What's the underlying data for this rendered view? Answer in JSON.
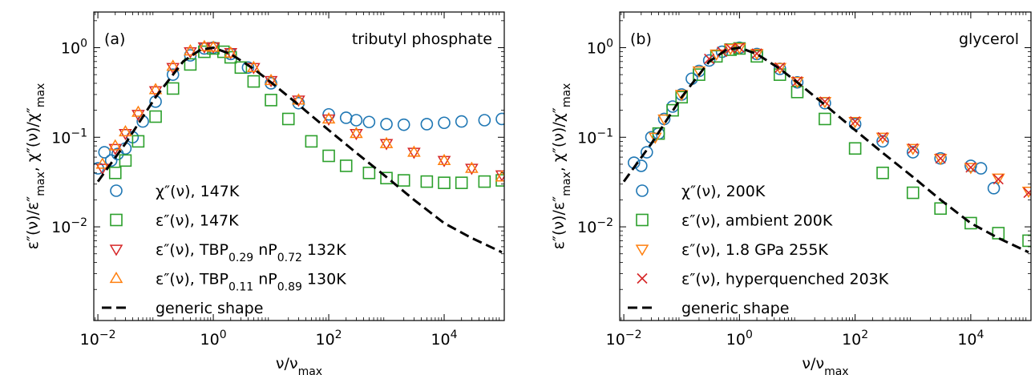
{
  "chart_data": [
    {
      "type": "scatter",
      "panel_label": "(a)",
      "title": "tributyl phosphate",
      "xlabel": "ν/ν_max",
      "ylabel": "ε″(ν)/ε″_max, χ″(ν)/χ″_max",
      "xscale": "log",
      "yscale": "log",
      "xlim": [
        0.0085,
        110000
      ],
      "ylim": [
        0.0009,
        2.5
      ],
      "x_ticks": [
        {
          "value": 0.01,
          "base": "10",
          "exp": "−2"
        },
        {
          "value": 1,
          "base": "10",
          "exp": "0"
        },
        {
          "value": 100,
          "base": "10",
          "exp": "2"
        },
        {
          "value": 10000,
          "base": "10",
          "exp": "4"
        }
      ],
      "y_ticks": [
        {
          "value": 0.01,
          "base": "10",
          "exp": "−2"
        },
        {
          "value": 0.1,
          "base": "10",
          "exp": "−1"
        },
        {
          "value": 1,
          "base": "10",
          "exp": "0"
        }
      ],
      "legend_position": "lower-left",
      "series": [
        {
          "name": "χ″(ν), 147K",
          "marker": "circle",
          "color": "#1f77b4",
          "x": [
            0.01,
            0.013,
            0.017,
            0.022,
            0.03,
            0.04,
            0.06,
            0.1,
            0.2,
            0.4,
            0.7,
            1,
            2,
            4,
            10,
            30,
            100,
            200,
            300,
            500,
            1000,
            2000,
            5000,
            10000,
            20000,
            50000,
            100000
          ],
          "y": [
            0.045,
            0.068,
            0.055,
            0.065,
            0.075,
            0.1,
            0.15,
            0.25,
            0.5,
            0.82,
            0.98,
            1.0,
            0.85,
            0.6,
            0.4,
            0.24,
            0.18,
            0.165,
            0.155,
            0.148,
            0.14,
            0.138,
            0.14,
            0.145,
            0.15,
            0.155,
            0.16
          ]
        },
        {
          "name": "ε″(ν), 147K",
          "marker": "square",
          "color": "#2ca02c",
          "x": [
            0.02,
            0.03,
            0.05,
            0.1,
            0.2,
            0.4,
            0.7,
            1,
            1.5,
            2,
            3,
            5,
            10,
            20,
            50,
            100,
            200,
            500,
            1000,
            2000,
            5000,
            10000,
            20000,
            50000,
            100000
          ],
          "y": [
            0.04,
            0.055,
            0.09,
            0.17,
            0.35,
            0.65,
            0.9,
            0.98,
            0.9,
            0.78,
            0.6,
            0.42,
            0.26,
            0.16,
            0.09,
            0.062,
            0.048,
            0.04,
            0.035,
            0.033,
            0.032,
            0.031,
            0.031,
            0.032,
            0.033
          ]
        },
        {
          "name": "ε″(ν), TBP0.29 nP0.72  132K",
          "marker": "triangle-down",
          "color": "#d62728",
          "x": [
            0.012,
            0.02,
            0.03,
            0.05,
            0.1,
            0.2,
            0.4,
            0.7,
            1,
            2,
            5,
            10,
            30,
            100,
            300,
            1000,
            3000,
            10000,
            30000,
            100000
          ],
          "y": [
            0.045,
            0.075,
            0.11,
            0.18,
            0.33,
            0.6,
            0.9,
            1.02,
            1.02,
            0.88,
            0.6,
            0.43,
            0.26,
            0.16,
            0.11,
            0.085,
            0.068,
            0.055,
            0.045,
            0.038
          ]
        },
        {
          "name": "ε″(ν), TBP0.11 nP0.89  130K",
          "marker": "triangle-up",
          "color": "#ff7f0e",
          "x": [
            0.012,
            0.02,
            0.03,
            0.05,
            0.1,
            0.2,
            0.4,
            0.7,
            1,
            2,
            5,
            10,
            30,
            100,
            300,
            1000,
            3000,
            10000,
            30000,
            100000
          ],
          "y": [
            0.05,
            0.08,
            0.115,
            0.19,
            0.34,
            0.62,
            0.92,
            1.03,
            1.01,
            0.87,
            0.6,
            0.43,
            0.26,
            0.16,
            0.11,
            0.085,
            0.068,
            0.055,
            0.045,
            0.036
          ]
        },
        {
          "name": "generic shape",
          "marker": "dashed-line",
          "color": "#000000",
          "x": [
            0.01,
            0.03,
            0.1,
            0.3,
            0.6,
            1,
            2,
            5,
            10,
            30,
            100,
            300,
            1000,
            3000,
            10000,
            30000,
            100000
          ],
          "y": [
            0.032,
            0.085,
            0.28,
            0.7,
            0.95,
            1.0,
            0.85,
            0.58,
            0.41,
            0.23,
            0.12,
            0.067,
            0.036,
            0.02,
            0.011,
            0.0075,
            0.0052
          ]
        }
      ]
    },
    {
      "type": "scatter",
      "panel_label": "(b)",
      "title": "glycerol",
      "xlabel": "ν/ν_max",
      "ylabel": "ε″(ν)/ε″_max, χ″(ν)/χ″_max",
      "xscale": "log",
      "yscale": "log",
      "xlim": [
        0.0085,
        110000
      ],
      "ylim": [
        0.0009,
        2.5
      ],
      "x_ticks": [
        {
          "value": 0.01,
          "base": "10",
          "exp": "−2"
        },
        {
          "value": 1,
          "base": "10",
          "exp": "0"
        },
        {
          "value": 100,
          "base": "10",
          "exp": "2"
        },
        {
          "value": 10000,
          "base": "10",
          "exp": "4"
        }
      ],
      "y_ticks": [
        {
          "value": 0.01,
          "base": "10",
          "exp": "−2"
        },
        {
          "value": 0.1,
          "base": "10",
          "exp": "−1"
        },
        {
          "value": 1,
          "base": "10",
          "exp": "0"
        }
      ],
      "legend_position": "lower-left",
      "series": [
        {
          "name": "χ″(ν), 200K",
          "marker": "circle",
          "color": "#1f77b4",
          "x": [
            0.015,
            0.02,
            0.025,
            0.03,
            0.04,
            0.05,
            0.07,
            0.1,
            0.15,
            0.2,
            0.3,
            0.5,
            1,
            2,
            5,
            10,
            30,
            100,
            300,
            1000,
            3000,
            10000,
            15000,
            25000
          ],
          "y": [
            0.052,
            0.048,
            0.068,
            0.1,
            0.11,
            0.16,
            0.22,
            0.3,
            0.45,
            0.55,
            0.72,
            0.9,
            1.0,
            0.85,
            0.58,
            0.41,
            0.24,
            0.14,
            0.09,
            0.068,
            0.058,
            0.048,
            0.045,
            0.027
          ]
        },
        {
          "name": "ε″(ν), ambient 200K",
          "marker": "square",
          "color": "#2ca02c",
          "x": [
            0.04,
            0.07,
            0.1,
            0.2,
            0.4,
            0.7,
            1,
            2,
            5,
            10,
            30,
            100,
            300,
            1000,
            3000,
            10000,
            30000,
            100000
          ],
          "y": [
            0.11,
            0.2,
            0.28,
            0.5,
            0.8,
            0.95,
            0.98,
            0.8,
            0.5,
            0.32,
            0.16,
            0.075,
            0.04,
            0.024,
            0.016,
            0.011,
            0.0085,
            0.007
          ]
        },
        {
          "name": "ε″(ν), 1.8 GPa 255K",
          "marker": "triangle-down",
          "color": "#ff7f0e",
          "x": [
            0.035,
            0.05,
            0.1,
            0.2,
            0.4,
            0.7,
            1,
            2,
            5,
            10,
            30,
            100,
            300,
            1000,
            3000,
            10000,
            30000,
            100000
          ],
          "y": [
            0.1,
            0.16,
            0.3,
            0.55,
            0.85,
            0.98,
            1.0,
            0.86,
            0.6,
            0.42,
            0.25,
            0.15,
            0.1,
            0.075,
            0.058,
            0.046,
            0.035,
            0.025
          ]
        },
        {
          "name": "ε″(ν), hyperquenched 203K",
          "marker": "x",
          "color": "#d62728",
          "x": [
            0.3,
            0.5,
            0.7,
            1,
            2,
            5,
            10,
            30,
            100,
            300,
            1000,
            3000,
            10000,
            30000,
            100000
          ],
          "y": [
            0.75,
            0.9,
            0.98,
            1.0,
            0.86,
            0.6,
            0.42,
            0.25,
            0.15,
            0.1,
            0.075,
            0.058,
            0.046,
            0.034,
            0.024
          ]
        },
        {
          "name": "generic shape",
          "marker": "dashed-line",
          "color": "#000000",
          "x": [
            0.01,
            0.03,
            0.1,
            0.3,
            0.6,
            1,
            2,
            5,
            10,
            30,
            100,
            300,
            1000,
            3000,
            10000,
            30000,
            100000
          ],
          "y": [
            0.032,
            0.085,
            0.28,
            0.7,
            0.95,
            1.0,
            0.85,
            0.58,
            0.41,
            0.23,
            0.12,
            0.067,
            0.036,
            0.02,
            0.011,
            0.0075,
            0.0052
          ]
        }
      ]
    }
  ]
}
